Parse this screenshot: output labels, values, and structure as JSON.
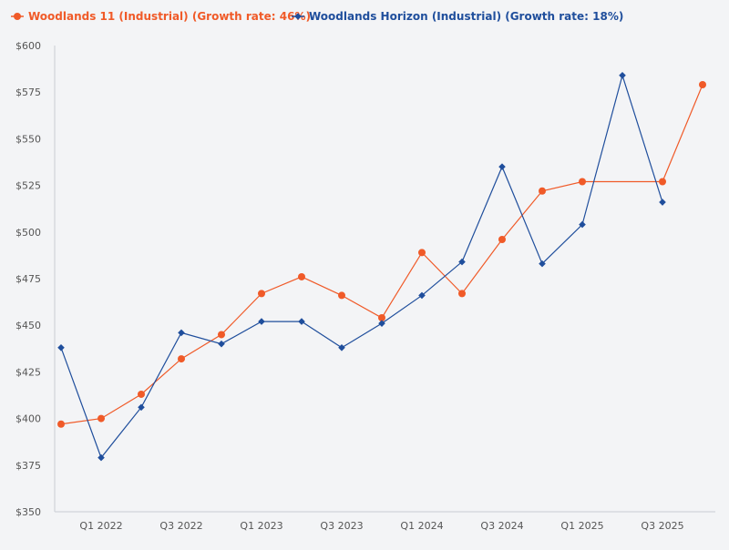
{
  "chart_data": {
    "type": "line",
    "title": "",
    "xlabel": "",
    "ylabel": "",
    "ylim": [
      350,
      600
    ],
    "yticks": [
      350,
      375,
      400,
      425,
      450,
      475,
      500,
      525,
      550,
      575,
      600
    ],
    "ytick_labels": [
      "$350",
      "$375",
      "$400",
      "$425",
      "$450",
      "$475",
      "$500",
      "$525",
      "$550",
      "$575",
      "$600"
    ],
    "x": [
      "Q4 2021",
      "Q1 2022",
      "Q2 2022",
      "Q3 2022",
      "Q4 2022",
      "Q1 2023",
      "Q2 2023",
      "Q3 2023",
      "Q4 2023",
      "Q1 2024",
      "Q2 2024",
      "Q3 2024",
      "Q4 2024",
      "Q1 2025",
      "Q2 2025",
      "Q3 2025",
      "Q4 2025"
    ],
    "xtick_labels": [
      "Q1 2022",
      "Q3 2022",
      "Q1 2023",
      "Q3 2023",
      "Q1 2024",
      "Q3 2024",
      "Q1 2025",
      "Q3 2025"
    ],
    "grid": false,
    "legend_position": "top-left",
    "series": [
      {
        "name": "Woodlands 11 (Industrial) (Growth rate: 46%)",
        "color": "#f05a28",
        "marker": "circle",
        "values": [
          397,
          400,
          413,
          432,
          445,
          467,
          476,
          466,
          454,
          489,
          467,
          496,
          522,
          527,
          null,
          527,
          579
        ]
      },
      {
        "name": "Woodlands Horizon (Industrial) (Growth rate: 18%)",
        "color": "#1f4e9c",
        "marker": "diamond",
        "values": [
          438,
          379,
          406,
          446,
          440,
          452,
          452,
          438,
          451,
          466,
          484,
          535,
          483,
          504,
          584,
          516,
          null
        ]
      }
    ]
  }
}
